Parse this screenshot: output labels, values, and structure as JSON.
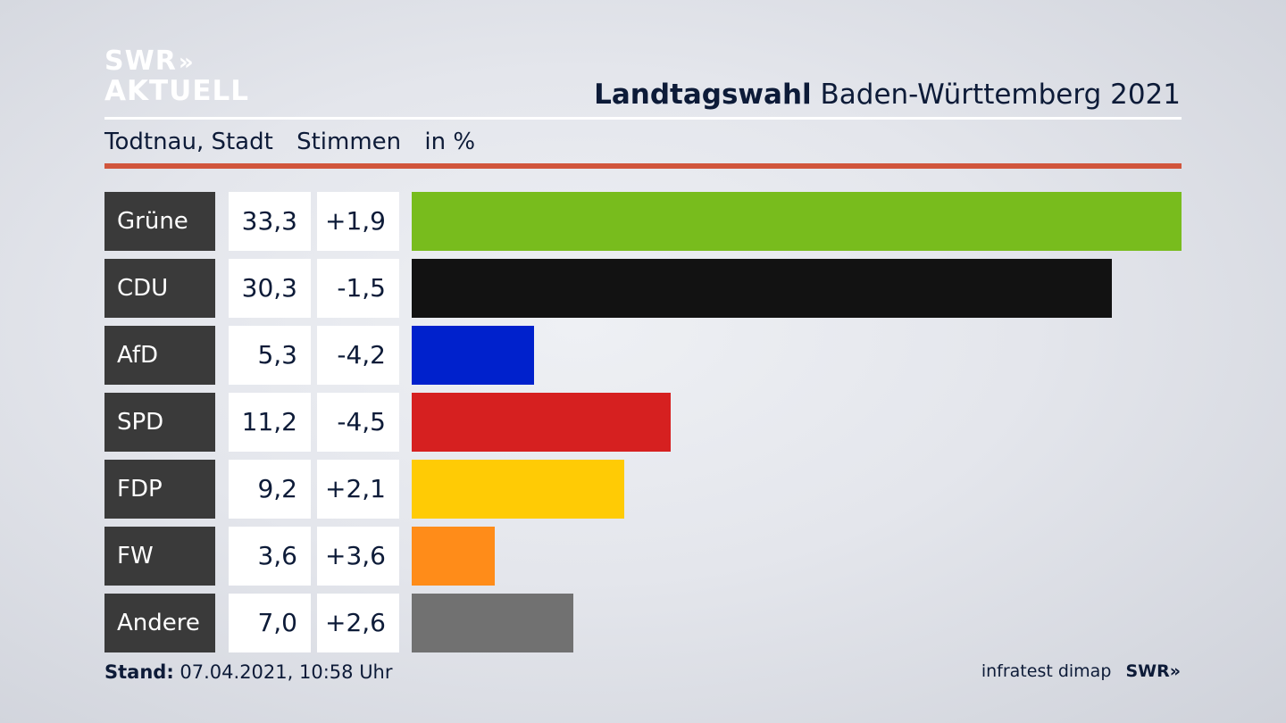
{
  "logo": {
    "line1": "SWR",
    "chevrons": "»",
    "line2": "AKTUELL"
  },
  "header": {
    "title_bold": "Landtagswahl",
    "title_rest": "Baden-Württemberg 2021"
  },
  "subheader": {
    "place": "Todtnau, Stadt",
    "measure": "Stimmen",
    "unit": "in %"
  },
  "colors": {
    "accent_rule": "#d1553c",
    "label_box": "#3a3a3a"
  },
  "chart_data": {
    "type": "bar",
    "orientation": "horizontal",
    "categories": [
      "Grüne",
      "CDU",
      "AfD",
      "SPD",
      "FDP",
      "FW",
      "Andere"
    ],
    "values": [
      33.3,
      30.3,
      5.3,
      11.2,
      9.2,
      3.6,
      7.0
    ],
    "value_labels": [
      "33,3",
      "30,3",
      "5,3",
      "11,2",
      "9,2",
      "3,6",
      "7,0"
    ],
    "diff_labels": [
      "+1,9",
      "-1,5",
      "-4,2",
      "-4,5",
      "+2,1",
      "+3,6",
      "+2,6"
    ],
    "colors": [
      "#78bc1d",
      "#121212",
      "#0021cc",
      "#d62020",
      "#ffcb05",
      "#ff8c19",
      "#717171"
    ],
    "xlim": [
      0,
      33.3
    ]
  },
  "footer": {
    "stand_label": "Stand:",
    "stand_value": "07.04.2021, 10:58 Uhr",
    "source": "infratest dimap",
    "brand": "SWR",
    "brand_chevrons": "»"
  }
}
